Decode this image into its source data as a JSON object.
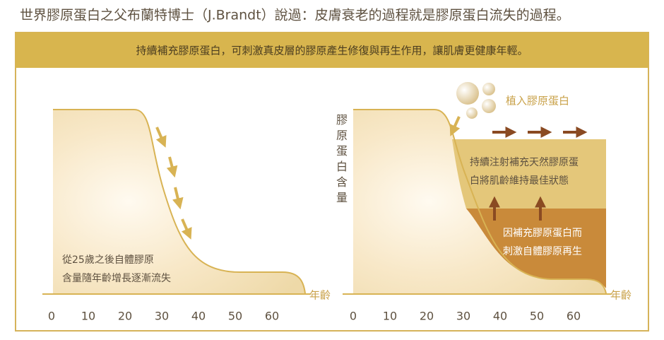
{
  "title": "世界膠原蛋白之父布蘭特博士（J.Brandt）說過：皮膚衰老的過程就是膠原蛋白流失的過程。",
  "banner": "持續補充膠原蛋白，可刺激真皮層的膠原產生修復與再生作用，讓肌膚更健康年輕。",
  "y_label": "膠原蛋白含量",
  "left_panel": {
    "caption": [
      "從25歲之後自體膠原",
      "含量隨年齡增長逐漸流失"
    ],
    "x_label": "年齡",
    "x_ticks": [
      0,
      10,
      20,
      30,
      40,
      50,
      60
    ]
  },
  "right_panel": {
    "legend": "植入膠原蛋白",
    "upper_note": [
      "持續注射補充天然膠原蛋",
      "白將肌齡維持最佳狀態"
    ],
    "lower_note": [
      "因補充膠原蛋白而",
      "刺激自體膠原再生"
    ],
    "x_label": "年齡",
    "x_ticks": [
      0,
      10,
      20,
      30,
      40,
      50,
      60
    ]
  }
}
